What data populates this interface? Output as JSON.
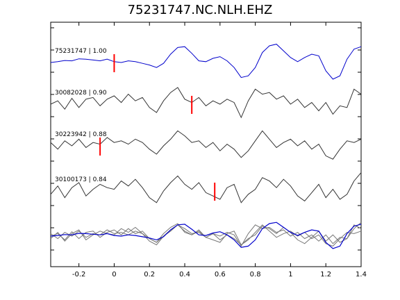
{
  "chart_data": {
    "type": "line",
    "title": "75231747.NC.NLH.EHZ",
    "xlabel": "",
    "ylabel": "",
    "xlim": [
      -0.36,
      1.4
    ],
    "x_ticks": [
      -0.2,
      0,
      0.2,
      0.4,
      0.6,
      0.8,
      1.0,
      1.2,
      1.4
    ],
    "x_tick_labels": [
      "-0.2",
      "0",
      "0.2",
      "0.4",
      "0.6",
      "0.8",
      "1",
      "1.2",
      "1.4"
    ],
    "grid": false,
    "colors": {
      "reference": "#0000cc",
      "trace": "#333333",
      "overlay": "#777777",
      "pick": "#ff0000"
    },
    "traces": [
      {
        "label": "75231747 | 1.00",
        "color": "#0000cc",
        "pick": 0.0,
        "x": [
          -0.36,
          -0.32,
          -0.28,
          -0.24,
          -0.2,
          -0.16,
          -0.12,
          -0.08,
          -0.04,
          0,
          0.04,
          0.08,
          0.12,
          0.16,
          0.2,
          0.24,
          0.28,
          0.32,
          0.36,
          0.4,
          0.44,
          0.48,
          0.52,
          0.56,
          0.6,
          0.64,
          0.68,
          0.72,
          0.76,
          0.8,
          0.84,
          0.88,
          0.92,
          0.96,
          1.0,
          1.04,
          1.08,
          1.12,
          1.16,
          1.2,
          1.24,
          1.28,
          1.32,
          1.36,
          1.4
        ],
        "y": [
          0.0,
          0.05,
          0.12,
          0.1,
          0.22,
          0.2,
          0.15,
          0.1,
          0.2,
          0.05,
          0.0,
          0.1,
          0.05,
          -0.05,
          -0.15,
          -0.3,
          -0.05,
          0.5,
          0.9,
          0.95,
          0.55,
          0.1,
          0.05,
          0.25,
          0.35,
          0.1,
          -0.3,
          -0.9,
          -0.8,
          -0.3,
          0.6,
          1.0,
          1.1,
          0.7,
          0.3,
          0.05,
          0.3,
          0.5,
          0.4,
          -0.5,
          -1.0,
          -0.8,
          0.2,
          0.8,
          0.95
        ]
      },
      {
        "label": "30082028 | 0.90",
        "color": "#333333",
        "pick": 0.44,
        "x": [
          -0.36,
          -0.32,
          -0.28,
          -0.24,
          -0.2,
          -0.16,
          -0.12,
          -0.08,
          -0.04,
          0,
          0.04,
          0.08,
          0.12,
          0.16,
          0.2,
          0.24,
          0.28,
          0.32,
          0.36,
          0.4,
          0.44,
          0.48,
          0.52,
          0.56,
          0.6,
          0.64,
          0.68,
          0.72,
          0.76,
          0.8,
          0.84,
          0.88,
          0.92,
          0.96,
          1.0,
          1.04,
          1.08,
          1.12,
          1.16,
          1.2,
          1.24,
          1.28,
          1.32,
          1.36,
          1.4
        ],
        "y": [
          0.0,
          0.2,
          -0.3,
          0.35,
          -0.2,
          0.3,
          0.4,
          -0.1,
          0.3,
          0.5,
          0.1,
          0.6,
          0.2,
          0.4,
          -0.2,
          -0.5,
          0.2,
          0.7,
          1.0,
          0.3,
          0.1,
          0.4,
          -0.1,
          0.2,
          0.0,
          0.3,
          0.1,
          -0.8,
          0.2,
          0.9,
          0.6,
          0.7,
          0.3,
          0.5,
          0.0,
          0.3,
          -0.2,
          0.1,
          -0.4,
          0.1,
          -0.6,
          -0.1,
          -0.2,
          0.9,
          0.6
        ]
      },
      {
        "label": "30223942 | 0.88",
        "color": "#333333",
        "pick": -0.08,
        "x": [
          -0.36,
          -0.32,
          -0.28,
          -0.24,
          -0.2,
          -0.16,
          -0.12,
          -0.08,
          -0.04,
          0,
          0.04,
          0.08,
          0.12,
          0.16,
          0.2,
          0.24,
          0.28,
          0.32,
          0.36,
          0.4,
          0.44,
          0.48,
          0.52,
          0.56,
          0.6,
          0.64,
          0.68,
          0.72,
          0.76,
          0.8,
          0.84,
          0.88,
          0.92,
          0.96,
          1.0,
          1.04,
          1.08,
          1.12,
          1.16,
          1.2,
          1.24,
          1.28,
          1.32,
          1.36,
          1.4
        ],
        "y": [
          0.2,
          -0.2,
          0.3,
          0.0,
          0.4,
          -0.1,
          0.2,
          0.1,
          0.5,
          0.2,
          0.3,
          0.1,
          0.4,
          0.2,
          -0.2,
          -0.5,
          0.0,
          0.4,
          0.9,
          0.6,
          0.2,
          0.3,
          -0.1,
          0.2,
          -0.3,
          0.1,
          -0.2,
          -0.7,
          -0.3,
          0.3,
          0.9,
          0.4,
          -0.1,
          0.2,
          0.4,
          0.0,
          0.3,
          -0.2,
          0.1,
          -0.6,
          -0.8,
          -0.2,
          0.3,
          0.2,
          0.4
        ]
      },
      {
        "label": "30100173 | 0.84",
        "color": "#333333",
        "pick": 0.57,
        "x": [
          -0.36,
          -0.32,
          -0.28,
          -0.24,
          -0.2,
          -0.16,
          -0.12,
          -0.08,
          -0.04,
          0,
          0.04,
          0.08,
          0.12,
          0.16,
          0.2,
          0.24,
          0.28,
          0.32,
          0.36,
          0.4,
          0.44,
          0.48,
          0.52,
          0.56,
          0.6,
          0.64,
          0.68,
          0.72,
          0.76,
          0.8,
          0.84,
          0.88,
          0.92,
          0.96,
          1.0,
          1.04,
          1.08,
          1.12,
          1.16,
          1.2,
          1.24,
          1.28,
          1.32,
          1.36,
          1.4
        ],
        "y": [
          -0.2,
          0.3,
          -0.4,
          0.2,
          0.5,
          -0.3,
          0.1,
          0.4,
          0.2,
          0.1,
          0.6,
          0.3,
          0.7,
          0.2,
          -0.4,
          -0.7,
          0.0,
          0.5,
          0.9,
          0.4,
          0.1,
          0.5,
          -0.1,
          -0.3,
          -0.5,
          0.2,
          0.4,
          -0.7,
          -0.2,
          0.1,
          0.8,
          0.6,
          0.2,
          0.7,
          0.3,
          -0.3,
          -0.6,
          -0.1,
          0.4,
          -0.4,
          0.1,
          -0.5,
          -0.2,
          0.6,
          1.1
        ]
      }
    ]
  }
}
